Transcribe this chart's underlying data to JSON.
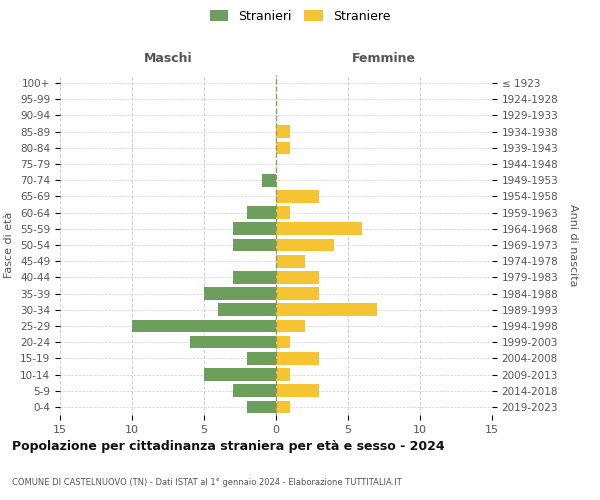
{
  "age_groups": [
    "100+",
    "95-99",
    "90-94",
    "85-89",
    "80-84",
    "75-79",
    "70-74",
    "65-69",
    "60-64",
    "55-59",
    "50-54",
    "45-49",
    "40-44",
    "35-39",
    "30-34",
    "25-29",
    "20-24",
    "15-19",
    "10-14",
    "5-9",
    "0-4"
  ],
  "birth_years": [
    "≤ 1923",
    "1924-1928",
    "1929-1933",
    "1934-1938",
    "1939-1943",
    "1944-1948",
    "1949-1953",
    "1954-1958",
    "1959-1963",
    "1964-1968",
    "1969-1973",
    "1974-1978",
    "1979-1983",
    "1984-1988",
    "1989-1993",
    "1994-1998",
    "1999-2003",
    "2004-2008",
    "2009-2013",
    "2014-2018",
    "2019-2023"
  ],
  "males": [
    0,
    0,
    0,
    0,
    0,
    0,
    1,
    0,
    2,
    3,
    3,
    0,
    3,
    5,
    4,
    10,
    6,
    2,
    5,
    3,
    2
  ],
  "females": [
    0,
    0,
    0,
    1,
    1,
    0,
    0,
    3,
    1,
    6,
    4,
    2,
    3,
    3,
    7,
    2,
    1,
    3,
    1,
    3,
    1
  ],
  "male_color": "#6d9e5e",
  "female_color": "#f5c432",
  "grid_color": "#d0d0d0",
  "center_line_color": "#9a9a5a",
  "title": "Popolazione per cittadinanza straniera per età e sesso - 2024",
  "subtitle": "COMUNE DI CASTELNUOVO (TN) - Dati ISTAT al 1° gennaio 2024 - Elaborazione TUTTITALIA.IT",
  "xlabel_left": "Maschi",
  "xlabel_right": "Femmine",
  "ylabel_left": "Fasce di età",
  "ylabel_right": "Anni di nascita",
  "legend_stranieri": "Stranieri",
  "legend_straniere": "Straniere",
  "xlim": 15,
  "background_color": "#ffffff"
}
